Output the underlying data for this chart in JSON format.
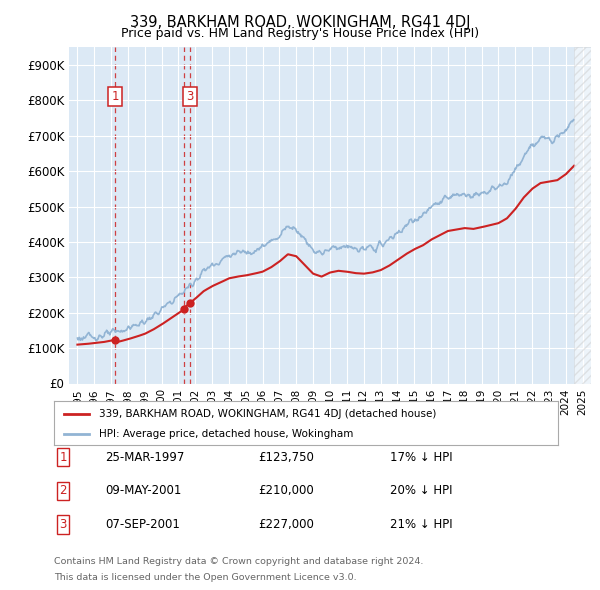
{
  "title": "339, BARKHAM ROAD, WOKINGHAM, RG41 4DJ",
  "subtitle": "Price paid vs. HM Land Registry's House Price Index (HPI)",
  "background_color": "#ffffff",
  "plot_bg_color": "#dce9f5",
  "hpi_color": "#92b4d4",
  "price_color": "#cc2222",
  "transactions": [
    {
      "date_num": 1997.23,
      "price": 123750,
      "label": "1"
    },
    {
      "date_num": 2001.35,
      "price": 210000,
      "label": "2"
    },
    {
      "date_num": 2001.68,
      "price": 227000,
      "label": "3"
    }
  ],
  "transaction_labels": [
    {
      "num": "1",
      "date": "25-MAR-1997",
      "price": "£123,750",
      "hpi_diff": "17% ↓ HPI"
    },
    {
      "num": "2",
      "date": "09-MAY-2001",
      "price": "£210,000",
      "hpi_diff": "20% ↓ HPI"
    },
    {
      "num": "3",
      "date": "07-SEP-2001",
      "price": "£227,000",
      "hpi_diff": "21% ↓ HPI"
    }
  ],
  "yticks": [
    0,
    100000,
    200000,
    300000,
    400000,
    500000,
    600000,
    700000,
    800000,
    900000
  ],
  "ytick_labels": [
    "£0",
    "£100K",
    "£200K",
    "£300K",
    "£400K",
    "£500K",
    "£600K",
    "£700K",
    "£800K",
    "£900K"
  ],
  "xmin": 1994.5,
  "xmax": 2025.5,
  "ymin": 0,
  "ymax": 950000,
  "legend_label_red": "339, BARKHAM ROAD, WOKINGHAM, RG41 4DJ (detached house)",
  "legend_label_blue": "HPI: Average price, detached house, Wokingham",
  "footer1": "Contains HM Land Registry data © Crown copyright and database right 2024.",
  "footer2": "This data is licensed under the Open Government Licence v3.0."
}
